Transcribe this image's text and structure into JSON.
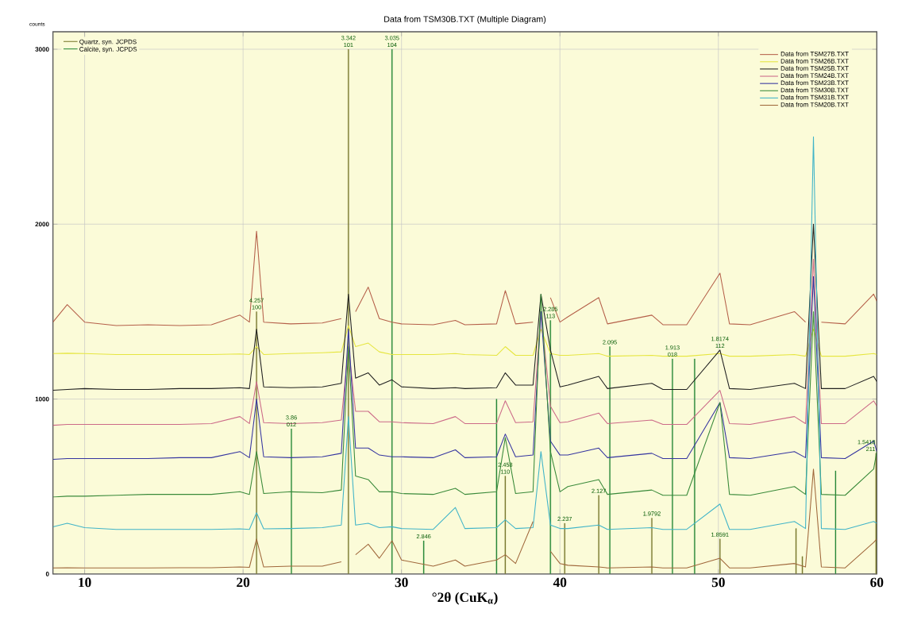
{
  "chart_data": {
    "type": "line",
    "title": "Data from TSM30B.TXT (Multiple Diagram)",
    "xlabel": "°2θ (CuK$_{α}$)",
    "ylabel": "counts",
    "x": [
      8,
      8.9,
      10,
      12,
      14,
      16,
      18,
      19.8,
      20.4,
      20.85,
      21.3,
      23,
      25,
      26.2,
      26.65,
      27.1,
      27.9,
      28.6,
      29.4,
      30,
      32,
      33.4,
      34,
      36,
      36.55,
      37.2,
      38.3,
      38.8,
      39.4,
      40,
      40.5,
      42.45,
      43,
      45.8,
      46.5,
      48,
      50.1,
      50.7,
      52,
      54.8,
      55.5,
      56.0,
      56.5,
      58,
      59.8,
      60
    ],
    "series": [
      {
        "name": "Data from TSM27B.TXT",
        "color": "#b5604a",
        "values": [
          1440,
          1540,
          1440,
          1420,
          1425,
          1420,
          1425,
          1480,
          1440,
          1960,
          1440,
          1430,
          1435,
          1460,
          null,
          1500,
          1640,
          1460,
          1440,
          1430,
          1425,
          1450,
          1425,
          1430,
          1620,
          1430,
          1440,
          null,
          1580,
          1440,
          1470,
          1580,
          1430,
          1480,
          1425,
          1425,
          1720,
          1430,
          1425,
          1500,
          1440,
          null,
          1440,
          1430,
          1600,
          1560
        ]
      },
      {
        "name": "Data from TSM26B.TXT",
        "color": "#e6e640",
        "values": [
          1260,
          1262,
          1260,
          1255,
          1255,
          1255,
          1255,
          1258,
          1255,
          1300,
          1255,
          1260,
          1265,
          1270,
          1420,
          1300,
          1320,
          1270,
          1255,
          1255,
          1255,
          1260,
          1255,
          1250,
          1300,
          1250,
          1250,
          1400,
          1260,
          1250,
          1250,
          1260,
          1245,
          1250,
          1245,
          1245,
          1260,
          1245,
          1245,
          1255,
          1245,
          1400,
          1245,
          1245,
          1260,
          1255
        ]
      },
      {
        "name": "Data from TSM25B.TXT",
        "color": "#202020",
        "values": [
          1050,
          1055,
          1060,
          1055,
          1055,
          1060,
          1060,
          1065,
          1060,
          1400,
          1070,
          1065,
          1070,
          1090,
          1600,
          1120,
          1150,
          1080,
          1110,
          1070,
          1060,
          1065,
          1060,
          1065,
          1150,
          1080,
          1080,
          1600,
          1280,
          1070,
          1080,
          1130,
          1060,
          1090,
          1055,
          1055,
          1280,
          1060,
          1055,
          1090,
          1060,
          2000,
          1060,
          1060,
          1130,
          1100
        ]
      },
      {
        "name": "Data from TSM24B.TXT",
        "color": "#cc6a88",
        "values": [
          850,
          855,
          855,
          855,
          855,
          855,
          860,
          900,
          860,
          1100,
          865,
          860,
          865,
          880,
          1300,
          930,
          930,
          870,
          870,
          865,
          860,
          900,
          860,
          860,
          990,
          865,
          870,
          1500,
          960,
          865,
          870,
          920,
          860,
          880,
          855,
          855,
          1050,
          860,
          855,
          900,
          860,
          1800,
          860,
          860,
          990,
          960
        ]
      },
      {
        "name": "Data from TSM23B.TXT",
        "color": "#3535a0",
        "values": [
          655,
          660,
          660,
          660,
          660,
          665,
          665,
          700,
          665,
          1000,
          670,
          665,
          670,
          690,
          1400,
          720,
          720,
          680,
          670,
          670,
          665,
          710,
          665,
          670,
          800,
          670,
          680,
          1500,
          760,
          680,
          680,
          720,
          665,
          690,
          660,
          660,
          980,
          665,
          660,
          700,
          665,
          1700,
          665,
          660,
          760,
          700
        ]
      },
      {
        "name": "Data from TSM30B.TXT",
        "color": "#3a8a3a",
        "values": [
          440,
          445,
          445,
          450,
          455,
          455,
          455,
          470,
          455,
          700,
          460,
          470,
          465,
          480,
          1300,
          560,
          540,
          470,
          470,
          460,
          455,
          490,
          455,
          470,
          780,
          460,
          470,
          1600,
          700,
          470,
          500,
          540,
          455,
          480,
          450,
          450,
          980,
          455,
          450,
          500,
          455,
          1500,
          455,
          450,
          600,
          700
        ]
      },
      {
        "name": "Data from TSM31B.TXT",
        "color": "#40b4c8",
        "values": [
          270,
          290,
          265,
          255,
          255,
          255,
          255,
          258,
          255,
          350,
          258,
          260,
          265,
          280,
          900,
          280,
          290,
          265,
          270,
          260,
          255,
          380,
          260,
          265,
          310,
          260,
          265,
          700,
          280,
          260,
          260,
          280,
          255,
          265,
          255,
          255,
          400,
          255,
          255,
          300,
          260,
          2500,
          260,
          255,
          300,
          290
        ]
      },
      {
        "name": "Data from TSM20B.TXT",
        "color": "#a0683c",
        "values": [
          35,
          36,
          35,
          35,
          35,
          36,
          36,
          40,
          38,
          200,
          40,
          45,
          45,
          70,
          null,
          110,
          170,
          90,
          190,
          80,
          45,
          80,
          45,
          80,
          110,
          60,
          300,
          null,
          130,
          60,
          50,
          40,
          35,
          40,
          35,
          35,
          90,
          35,
          35,
          60,
          40,
          600,
          40,
          35,
          180,
          200
        ]
      },
      {
        "name": "Quartz, syn. JCPDS",
        "type": "bar",
        "color": "#7a7a30",
        "x": [
          20.85,
          26.65,
          36.55,
          40.3,
          42.45,
          45.8,
          50.1,
          54.9,
          55.3,
          59.95
        ],
        "values": [
          1500,
          3000,
          560,
          290,
          450,
          320,
          200,
          260,
          100,
          690
        ]
      },
      {
        "name": "Calcite, syn. JCPDS",
        "type": "bar",
        "color": "#2a8a3a",
        "x": [
          23.05,
          29.4,
          31.4,
          36.0,
          39.4,
          43.15,
          47.1,
          48.5,
          57.4
        ],
        "values": [
          830,
          3000,
          190,
          1000,
          1450,
          1300,
          1230,
          1230,
          590
        ]
      }
    ],
    "xlim": [
      8,
      60
    ],
    "ylim": [
      0,
      3100
    ],
    "xticks": [
      10,
      20,
      30,
      40,
      50,
      60
    ],
    "yticks": [
      0,
      1000,
      2000,
      3000
    ],
    "grid": true,
    "legend": "top right",
    "annotations": [
      {
        "text": "4.257",
        "x": 20.85,
        "y": 1500
      },
      {
        "text": "100",
        "x": 20.85,
        "y": 1500
      },
      {
        "text": "3.342",
        "x": 26.65,
        "y": 3000
      },
      {
        "text": "101",
        "x": 26.65,
        "y": 3000
      },
      {
        "text": "3.035",
        "x": 29.4,
        "y": 3000
      },
      {
        "text": "104",
        "x": 29.4,
        "y": 3000
      },
      {
        "text": "3.86",
        "x": 23.05,
        "y": 830
      },
      {
        "text": "012",
        "x": 23.05,
        "y": 830
      },
      {
        "text": "2.285",
        "x": 39.4,
        "y": 1450
      },
      {
        "text": "113",
        "x": 39.4,
        "y": 1450
      },
      {
        "text": "2.095",
        "x": 43.15,
        "y": 1300
      },
      {
        "text": "1.913",
        "x": 47.1,
        "y": 1230
      },
      {
        "text": "018",
        "x": 47.1,
        "y": 1230
      },
      {
        "text": "1.8174",
        "x": 50.1,
        "y": 1280
      },
      {
        "text": "112",
        "x": 50.1,
        "y": 1280
      },
      {
        "text": "2.458",
        "x": 36.55,
        "y": 560
      },
      {
        "text": "110",
        "x": 36.55,
        "y": 560
      },
      {
        "text": "2.127",
        "x": 42.45,
        "y": 450
      },
      {
        "text": "2.237",
        "x": 40.3,
        "y": 290
      },
      {
        "text": "1.9792",
        "x": 45.8,
        "y": 320
      },
      {
        "text": "1.8591",
        "x": 50.1,
        "y": 200
      },
      {
        "text": "2.846",
        "x": 31.4,
        "y": 190
      },
      {
        "text": "1.5418",
        "x": 59.95,
        "y": 690
      },
      {
        "text": "211",
        "x": 59.95,
        "y": 690
      }
    ]
  }
}
